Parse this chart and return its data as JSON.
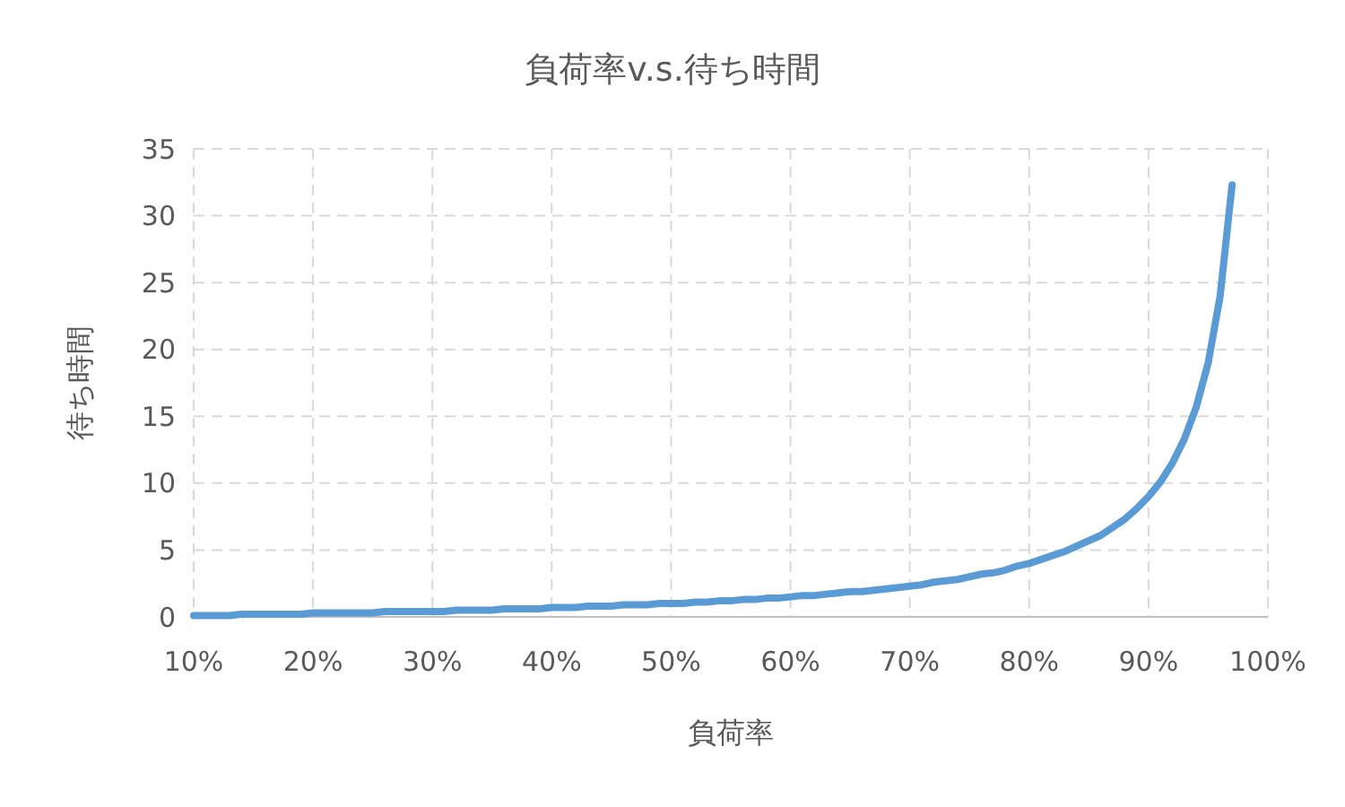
{
  "chart_data": {
    "type": "line",
    "title": "負荷率v.s.待ち時間",
    "xlabel": "負荷率",
    "ylabel": "待ち時間",
    "x": [
      10,
      11,
      12,
      13,
      14,
      15,
      16,
      17,
      18,
      19,
      20,
      21,
      22,
      23,
      24,
      25,
      26,
      27,
      28,
      29,
      30,
      31,
      32,
      33,
      34,
      35,
      36,
      37,
      38,
      39,
      40,
      41,
      42,
      43,
      44,
      45,
      46,
      47,
      48,
      49,
      50,
      51,
      52,
      53,
      54,
      55,
      56,
      57,
      58,
      59,
      60,
      61,
      62,
      63,
      64,
      65,
      66,
      67,
      68,
      69,
      70,
      71,
      72,
      73,
      74,
      75,
      76,
      77,
      78,
      79,
      80,
      81,
      82,
      83,
      84,
      85,
      86,
      87,
      88,
      89,
      90,
      91,
      92,
      93,
      94,
      95,
      96,
      97
    ],
    "series": [
      {
        "color": "#5b9bd5",
        "values": [
          0.1,
          0.1,
          0.1,
          0.1,
          0.2,
          0.2,
          0.2,
          0.2,
          0.2,
          0.2,
          0.3,
          0.3,
          0.3,
          0.3,
          0.3,
          0.3,
          0.4,
          0.4,
          0.4,
          0.4,
          0.4,
          0.4,
          0.5,
          0.5,
          0.5,
          0.5,
          0.6,
          0.6,
          0.6,
          0.6,
          0.7,
          0.7,
          0.7,
          0.8,
          0.8,
          0.8,
          0.9,
          0.9,
          0.9,
          1.0,
          1.0,
          1.0,
          1.1,
          1.1,
          1.2,
          1.2,
          1.3,
          1.3,
          1.4,
          1.4,
          1.5,
          1.6,
          1.6,
          1.7,
          1.8,
          1.9,
          1.9,
          2.0,
          2.1,
          2.2,
          2.3,
          2.4,
          2.6,
          2.7,
          2.8,
          3.0,
          3.2,
          3.3,
          3.5,
          3.8,
          4.0,
          4.3,
          4.6,
          4.9,
          5.3,
          5.7,
          6.1,
          6.7,
          7.3,
          8.1,
          9.0,
          10.1,
          11.5,
          13.3,
          15.7,
          19.0,
          24.0,
          32.3
        ]
      }
    ],
    "xlim": [
      10,
      100
    ],
    "xticks": [
      {
        "value": 10,
        "label": "10%"
      },
      {
        "value": 20,
        "label": "20%"
      },
      {
        "value": 30,
        "label": "30%"
      },
      {
        "value": 40,
        "label": "40%"
      },
      {
        "value": 50,
        "label": "50%"
      },
      {
        "value": 60,
        "label": "60%"
      },
      {
        "value": 70,
        "label": "70%"
      },
      {
        "value": 80,
        "label": "80%"
      },
      {
        "value": 90,
        "label": "90%"
      },
      {
        "value": 100,
        "label": "100%"
      }
    ],
    "ylim": [
      0,
      35
    ],
    "yticks": [
      0,
      5,
      10,
      15,
      20,
      25,
      30,
      35
    ],
    "grid": true,
    "marker": "none",
    "line_style": "solid"
  }
}
